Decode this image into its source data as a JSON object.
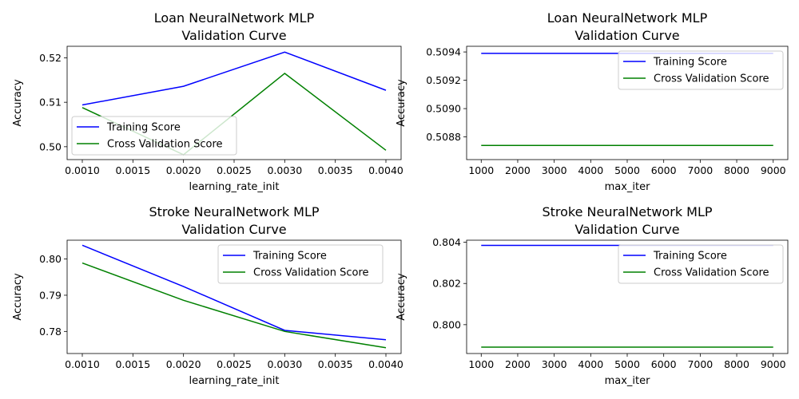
{
  "colors": {
    "training": "#0000ff",
    "cross_validation": "#008000"
  },
  "chart_data": [
    {
      "type": "line",
      "title": "Loan NeuralNetwork MLP\nValidation Curve",
      "xlabel": "learning_rate_init",
      "ylabel": "Accuracy",
      "x": [
        0.001,
        0.002,
        0.003,
        0.004
      ],
      "xlim": [
        0.00085,
        0.00415
      ],
      "ylim": [
        0.4971,
        0.5226
      ],
      "xticks": [
        "0.0010",
        "0.0015",
        "0.0020",
        "0.0025",
        "0.0030",
        "0.0035",
        "0.0040"
      ],
      "xtick_values": [
        0.001,
        0.0015,
        0.002,
        0.0025,
        0.003,
        0.0035,
        0.004
      ],
      "yticks": [
        "0.50",
        "0.51",
        "0.52"
      ],
      "ytick_values": [
        0.5,
        0.51,
        0.52
      ],
      "legend": "lower-left",
      "grid": false,
      "series": [
        {
          "name": "Training Score",
          "color": "#0000ff",
          "values": [
            0.5094,
            0.5136,
            0.5213,
            0.5127
          ]
        },
        {
          "name": "Cross Validation Score",
          "color": "#008000",
          "values": [
            0.5088,
            0.4982,
            0.5165,
            0.4992
          ]
        }
      ]
    },
    {
      "type": "line",
      "title": "Loan NeuralNetwork MLP\nValidation Curve",
      "xlabel": "max_iter",
      "ylabel": "Accuracy",
      "x": [
        1000,
        2000,
        3000,
        4000,
        5000,
        6000,
        7000,
        8000,
        9000
      ],
      "xlim": [
        600,
        9400
      ],
      "ylim": [
        0.50864,
        0.50944
      ],
      "xticks": [
        "1000",
        "2000",
        "3000",
        "4000",
        "5000",
        "6000",
        "7000",
        "8000",
        "9000"
      ],
      "xtick_values": [
        1000,
        2000,
        3000,
        4000,
        5000,
        6000,
        7000,
        8000,
        9000
      ],
      "yticks": [
        "0.5088",
        "0.5090",
        "0.5092",
        "0.5094"
      ],
      "ytick_values": [
        0.5088,
        0.509,
        0.5092,
        0.5094
      ],
      "legend": "upper-right",
      "grid": false,
      "series": [
        {
          "name": "Training Score",
          "color": "#0000ff",
          "values": [
            0.50939,
            0.50939,
            0.50939,
            0.50939,
            0.50939,
            0.50939,
            0.50939,
            0.50939,
            0.50939
          ]
        },
        {
          "name": "Cross Validation Score",
          "color": "#008000",
          "values": [
            0.50874,
            0.50874,
            0.50874,
            0.50874,
            0.50874,
            0.50874,
            0.50874,
            0.50874,
            0.50874
          ]
        }
      ]
    },
    {
      "type": "line",
      "title": "Stroke NeuralNetwork MLP\nValidation Curve",
      "xlabel": "learning_rate_init",
      "ylabel": "Accuracy",
      "x": [
        0.001,
        0.002,
        0.003,
        0.004
      ],
      "xlim": [
        0.00085,
        0.00415
      ],
      "ylim": [
        0.7739,
        0.8052
      ],
      "xticks": [
        "0.0010",
        "0.0015",
        "0.0020",
        "0.0025",
        "0.0030",
        "0.0035",
        "0.0040"
      ],
      "xtick_values": [
        0.001,
        0.0015,
        0.002,
        0.0025,
        0.003,
        0.0035,
        0.004
      ],
      "yticks": [
        "0.78",
        "0.79",
        "0.80"
      ],
      "ytick_values": [
        0.78,
        0.79,
        0.8
      ],
      "legend": "upper-right",
      "grid": false,
      "series": [
        {
          "name": "Training Score",
          "color": "#0000ff",
          "values": [
            0.8038,
            0.7924,
            0.7803,
            0.7777
          ]
        },
        {
          "name": "Cross Validation Score",
          "color": "#008000",
          "values": [
            0.7989,
            0.7886,
            0.78,
            0.7755
          ]
        }
      ]
    },
    {
      "type": "line",
      "title": "Stroke NeuralNetwork MLP\nValidation Curve",
      "xlabel": "max_iter",
      "ylabel": "Accuracy",
      "x": [
        1000,
        2000,
        3000,
        4000,
        5000,
        6000,
        7000,
        8000,
        9000
      ],
      "xlim": [
        600,
        9400
      ],
      "ylim": [
        0.7986,
        0.8041
      ],
      "xticks": [
        "1000",
        "2000",
        "3000",
        "4000",
        "5000",
        "6000",
        "7000",
        "8000",
        "9000"
      ],
      "xtick_values": [
        1000,
        2000,
        3000,
        4000,
        5000,
        6000,
        7000,
        8000,
        9000
      ],
      "yticks": [
        "0.800",
        "0.802",
        "0.804"
      ],
      "ytick_values": [
        0.8,
        0.802,
        0.804
      ],
      "legend": "upper-right",
      "grid": false,
      "series": [
        {
          "name": "Training Score",
          "color": "#0000ff",
          "values": [
            0.80385,
            0.80385,
            0.80385,
            0.80385,
            0.80385,
            0.80385,
            0.80385,
            0.80385,
            0.80385
          ]
        },
        {
          "name": "Cross Validation Score",
          "color": "#008000",
          "values": [
            0.79891,
            0.79891,
            0.79891,
            0.79891,
            0.79891,
            0.79891,
            0.79891,
            0.79891,
            0.79891
          ]
        }
      ]
    }
  ]
}
